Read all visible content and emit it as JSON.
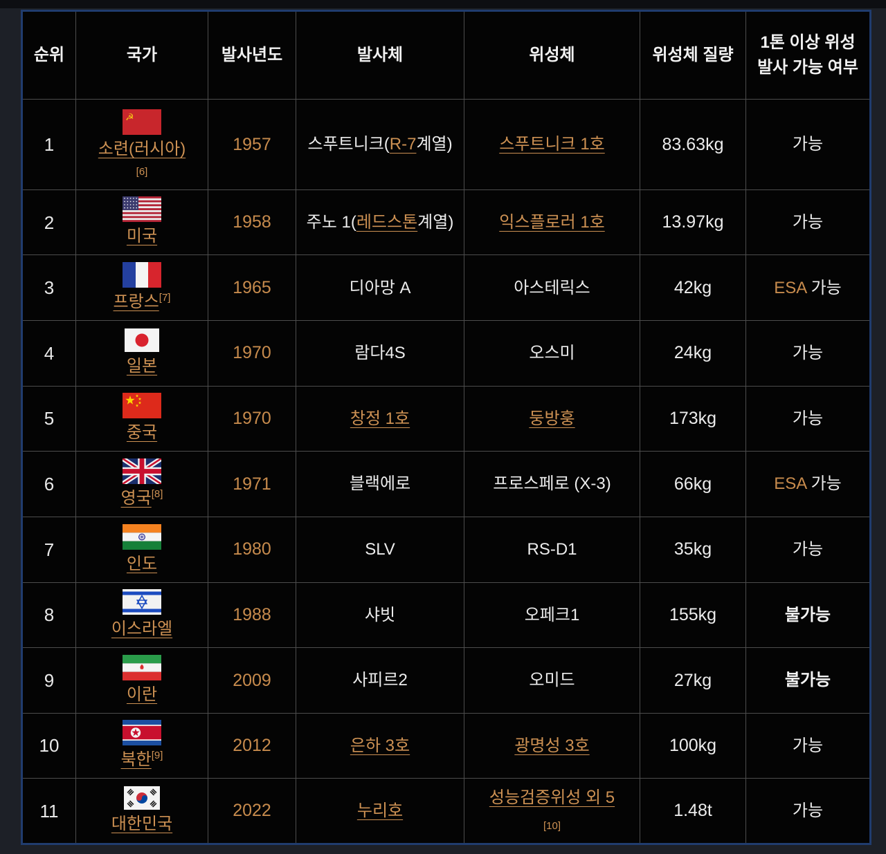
{
  "colors": {
    "page_background": "#1d2027",
    "top_strip": "#0d0e12",
    "table_background": "#040404",
    "table_outer_border": "#203c6e",
    "grid_line": "#4d4d4d",
    "text_white": "#ececec",
    "link_orange": "#cd9153",
    "year_orange": "#c78b4d"
  },
  "table": {
    "headers": [
      "순위",
      "국가",
      "발사년도",
      "발사체",
      "위성체",
      "위성체 질량",
      "1톤 이상 위성 발사 가능 여부"
    ],
    "rows": [
      {
        "rank": "1",
        "country": {
          "flag": "ussr",
          "flag_label": "soviet-union-flag",
          "name": "소련(러시아)",
          "footnote": "[6]",
          "footnote_position": "below"
        },
        "year": "1957",
        "vehicle": [
          {
            "t": "스푸트니크(",
            "s": "w"
          },
          {
            "t": "R-7",
            "s": "l"
          },
          {
            "t": "계열)",
            "s": "w"
          }
        ],
        "satellite": [
          {
            "t": "스푸트니크 1호",
            "s": "l"
          }
        ],
        "mass": "83.63kg",
        "capability": [
          {
            "t": "가능",
            "s": "w"
          }
        ]
      },
      {
        "rank": "2",
        "country": {
          "flag": "usa",
          "flag_label": "united-states-flag",
          "name": "미국",
          "footnote": null,
          "footnote_position": null
        },
        "year": "1958",
        "vehicle": [
          {
            "t": "주노 1(",
            "s": "w"
          },
          {
            "t": "레드스톤",
            "s": "l"
          },
          {
            "t": "계열)",
            "s": "w"
          }
        ],
        "satellite": [
          {
            "t": "익스플로러 1호",
            "s": "l"
          }
        ],
        "mass": "13.97kg",
        "capability": [
          {
            "t": "가능",
            "s": "w"
          }
        ]
      },
      {
        "rank": "3",
        "country": {
          "flag": "france",
          "flag_label": "france-flag",
          "name": "프랑스",
          "footnote": "[7]",
          "footnote_position": "inline"
        },
        "year": "1965",
        "vehicle": [
          {
            "t": "디아망 A",
            "s": "w"
          }
        ],
        "satellite": [
          {
            "t": "아스테릭스",
            "s": "w"
          }
        ],
        "mass": "42kg",
        "capability": [
          {
            "t": "ESA",
            "s": "y"
          },
          {
            "t": " 가능",
            "s": "w"
          }
        ]
      },
      {
        "rank": "4",
        "country": {
          "flag": "japan",
          "flag_label": "japan-flag",
          "name": "일본",
          "footnote": null,
          "footnote_position": null
        },
        "year": "1970",
        "vehicle": [
          {
            "t": "람다4S",
            "s": "w"
          }
        ],
        "satellite": [
          {
            "t": "오스미",
            "s": "w"
          }
        ],
        "mass": "24kg",
        "capability": [
          {
            "t": "가능",
            "s": "w"
          }
        ]
      },
      {
        "rank": "5",
        "country": {
          "flag": "china",
          "flag_label": "china-flag",
          "name": "중국",
          "footnote": null,
          "footnote_position": null
        },
        "year": "1970",
        "vehicle": [
          {
            "t": "창정 1호",
            "s": "l"
          }
        ],
        "satellite": [
          {
            "t": "둥방훙",
            "s": "l"
          }
        ],
        "mass": "173kg",
        "capability": [
          {
            "t": "가능",
            "s": "w"
          }
        ]
      },
      {
        "rank": "6",
        "country": {
          "flag": "uk",
          "flag_label": "united-kingdom-flag",
          "name": "영국",
          "footnote": "[8]",
          "footnote_position": "inline"
        },
        "year": "1971",
        "vehicle": [
          {
            "t": "블랙에로",
            "s": "w"
          }
        ],
        "satellite": [
          {
            "t": "프로스페로 (X-3)",
            "s": "w"
          }
        ],
        "mass": "66kg",
        "capability": [
          {
            "t": "ESA",
            "s": "y"
          },
          {
            "t": " 가능",
            "s": "w"
          }
        ]
      },
      {
        "rank": "7",
        "country": {
          "flag": "india",
          "flag_label": "india-flag",
          "name": "인도",
          "footnote": null,
          "footnote_position": null
        },
        "year": "1980",
        "vehicle": [
          {
            "t": "SLV",
            "s": "w"
          }
        ],
        "satellite": [
          {
            "t": "RS-D1",
            "s": "w"
          }
        ],
        "mass": "35kg",
        "capability": [
          {
            "t": "가능",
            "s": "w"
          }
        ]
      },
      {
        "rank": "8",
        "country": {
          "flag": "israel",
          "flag_label": "israel-flag",
          "name": "이스라엘",
          "footnote": null,
          "footnote_position": null
        },
        "year": "1988",
        "vehicle": [
          {
            "t": "샤빗",
            "s": "w"
          }
        ],
        "satellite": [
          {
            "t": "오페크1",
            "s": "w"
          }
        ],
        "mass": "155kg",
        "capability": [
          {
            "t": "불가능",
            "s": "b"
          }
        ]
      },
      {
        "rank": "9",
        "country": {
          "flag": "iran",
          "flag_label": "iran-flag",
          "name": "이란",
          "footnote": null,
          "footnote_position": null
        },
        "year": "2009",
        "vehicle": [
          {
            "t": "사피르2",
            "s": "w"
          }
        ],
        "satellite": [
          {
            "t": "오미드",
            "s": "w"
          }
        ],
        "mass": "27kg",
        "capability": [
          {
            "t": "불가능",
            "s": "b"
          }
        ]
      },
      {
        "rank": "10",
        "country": {
          "flag": "nkorea",
          "flag_label": "north-korea-flag",
          "name": "북한",
          "footnote": "[9]",
          "footnote_position": "inline"
        },
        "year": "2012",
        "vehicle": [
          {
            "t": "은하 3호",
            "s": "l"
          }
        ],
        "satellite": [
          {
            "t": "광명성 3호",
            "s": "l"
          }
        ],
        "mass": "100kg",
        "capability": [
          {
            "t": "가능",
            "s": "w"
          }
        ]
      },
      {
        "rank": "11",
        "country": {
          "flag": "skorea",
          "flag_label": "south-korea-flag",
          "name": "대한민국",
          "footnote": null,
          "footnote_position": null
        },
        "year": "2022",
        "vehicle": [
          {
            "t": "누리호",
            "s": "l"
          }
        ],
        "satellite": [
          {
            "t": "성능검증위성 외 5",
            "s": "l"
          },
          {
            "br": true
          },
          {
            "t": "[10]",
            "s": "f"
          }
        ],
        "mass": "1.48t",
        "capability": [
          {
            "t": "가능",
            "s": "w"
          }
        ]
      }
    ]
  }
}
